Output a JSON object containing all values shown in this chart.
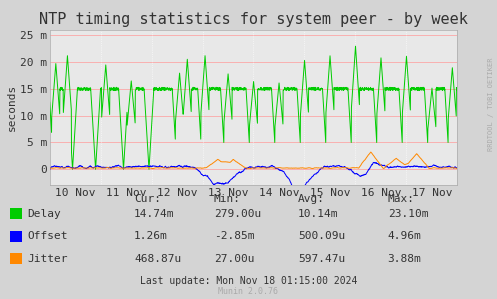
{
  "title": "NTP timing statistics for system peer - by week",
  "ylabel": "seconds",
  "background_color": "#d4d4d4",
  "plot_bg_color": "#e8e8e8",
  "x_tick_labels": [
    "10 Nov",
    "11 Nov",
    "12 Nov",
    "13 Nov",
    "14 Nov",
    "15 Nov",
    "16 Nov",
    "17 Nov"
  ],
  "y_tick_labels": [
    "0",
    "5 m",
    "10 m",
    "15 m",
    "20 m",
    "25 m"
  ],
  "y_tick_values": [
    0,
    5,
    10,
    15,
    20,
    25
  ],
  "ylim": [
    -3,
    26
  ],
  "delay_color": "#00cc00",
  "offset_color": "#0000ff",
  "jitter_color": "#ff8800",
  "legend_items": [
    "Delay",
    "Offset",
    "Jitter"
  ],
  "stats_header": [
    "Cur:",
    "Min:",
    "Avg:",
    "Max:"
  ],
  "stats_delay": [
    "14.74m",
    "279.00u",
    "10.14m",
    "23.10m"
  ],
  "stats_offset": [
    "1.26m",
    "-2.85m",
    "500.09u",
    "4.96m"
  ],
  "stats_jitter": [
    "468.87u",
    "27.00u",
    "597.47u",
    "3.88m"
  ],
  "last_update": "Last update: Mon Nov 18 01:15:00 2024",
  "munin_version": "Munin 2.0.76",
  "rrdtool_text": "RRDTOOL / TOBI OETIKER",
  "title_fontsize": 11,
  "axis_fontsize": 8,
  "legend_fontsize": 8
}
